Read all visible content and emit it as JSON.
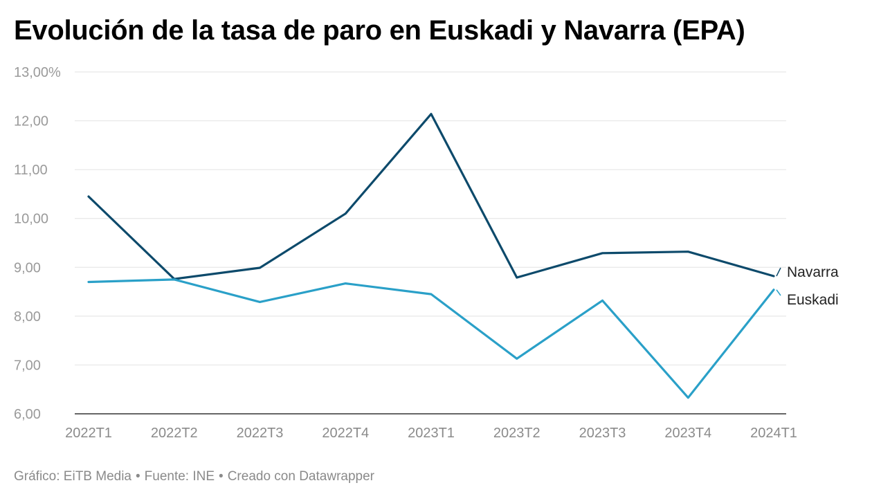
{
  "chart_data": {
    "type": "line",
    "title": "Evolución de la tasa de paro en Euskadi y Navarra (EPA)",
    "categories": [
      "2022T1",
      "2022T2",
      "2022T3",
      "2022T4",
      "2023T1",
      "2023T2",
      "2023T3",
      "2023T4",
      "2024T1"
    ],
    "series": [
      {
        "name": "Navarra",
        "color": "#0d4a6b",
        "values": [
          10.45,
          8.76,
          8.99,
          10.1,
          12.14,
          8.79,
          9.29,
          9.32,
          8.82
        ]
      },
      {
        "name": "Euskadi",
        "color": "#2aa0c8",
        "values": [
          8.7,
          8.75,
          8.29,
          8.67,
          8.45,
          7.13,
          8.32,
          6.33,
          8.54
        ]
      }
    ],
    "ylim": [
      6,
      13
    ],
    "yticks": [
      6,
      7,
      8,
      9,
      10,
      11,
      12,
      13
    ],
    "ytick_labels": [
      "6,00",
      "7,00",
      "8,00",
      "9,00",
      "10,00",
      "11,00",
      "12,00",
      "13,00%"
    ],
    "grid": true,
    "legend": "direct labels at line ends"
  },
  "footer": {
    "credit": "Gráfico: EiTB Media",
    "source": "Fuente: INE",
    "tool": "Creado con Datawrapper",
    "separator": "•"
  }
}
